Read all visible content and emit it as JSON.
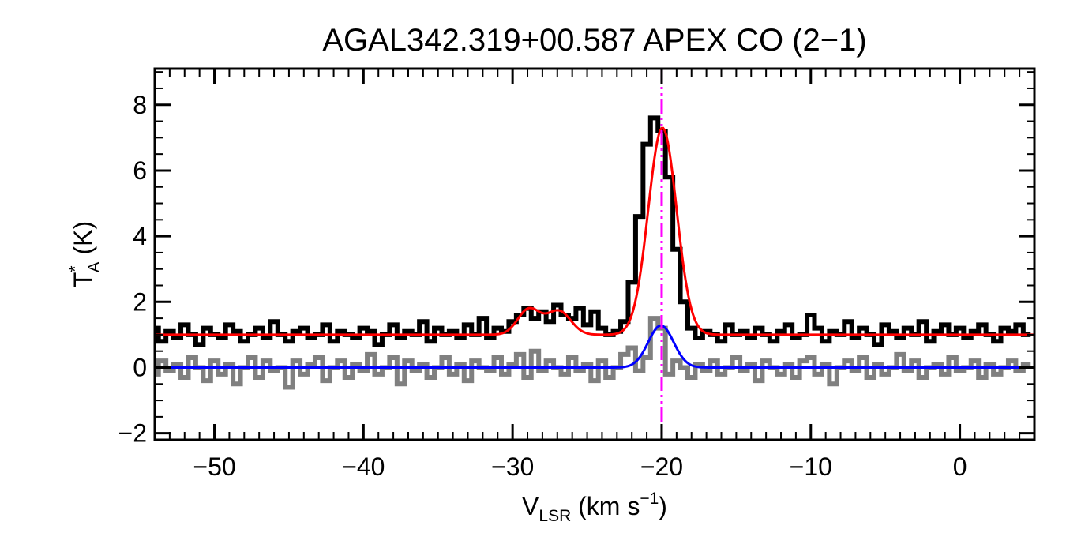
{
  "chart_data": {
    "type": "line",
    "title": "AGAL342.319+00.587  APEX CO (2−1)",
    "xlabel": {
      "main": "V",
      "sub": "LSR",
      "rest": " (km s",
      "sup": "−1",
      "end": ")"
    },
    "ylabel": {
      "main": "T",
      "sup": "*",
      "sub": "A",
      "rest": " (K)"
    },
    "xlim": [
      -54,
      5
    ],
    "ylim": [
      -2.2,
      9.1
    ],
    "x_ticks": [
      -50,
      -40,
      -30,
      -20,
      -10,
      0
    ],
    "x_tick_labels": [
      "−50",
      "−40",
      "−30",
      "−20",
      "−10",
      "0"
    ],
    "y_ticks": [
      -2,
      0,
      2,
      4,
      6,
      8
    ],
    "y_tick_labels": [
      "−2",
      "0",
      "2",
      "4",
      "6",
      "8"
    ],
    "grid": false,
    "marker_line": {
      "x": -20,
      "color": "#ff00ff",
      "style": "dash-dot-dot"
    },
    "series": [
      {
        "role": "observed-spectrum",
        "style": "step",
        "color": "#000000",
        "x": [
          -54,
          -53.5,
          -53,
          -52.5,
          -52,
          -51.5,
          -51,
          -50.5,
          -50,
          -49.5,
          -49,
          -48.5,
          -48,
          -47.5,
          -47,
          -46.5,
          -46,
          -45.5,
          -45,
          -44.5,
          -44,
          -43.5,
          -43,
          -42.5,
          -42,
          -41.5,
          -41,
          -40.5,
          -40,
          -39.5,
          -39,
          -38.5,
          -38,
          -37.5,
          -37,
          -36.5,
          -36,
          -35.5,
          -35,
          -34.5,
          -34,
          -33.5,
          -33,
          -32.5,
          -32,
          -31.5,
          -31,
          -30.5,
          -30,
          -29.5,
          -29,
          -28.5,
          -28,
          -27.5,
          -27,
          -26.5,
          -26,
          -25.5,
          -25,
          -24.5,
          -24,
          -23.5,
          -23,
          -22.5,
          -22,
          -21.5,
          -21,
          -20.5,
          -20,
          -19.5,
          -19,
          -18.5,
          -18,
          -17.5,
          -17,
          -16.5,
          -16,
          -15.5,
          -15,
          -14.5,
          -14,
          -13.5,
          -13,
          -12.5,
          -12,
          -11.5,
          -11,
          -10.5,
          -10,
          -9.5,
          -9,
          -8.5,
          -8,
          -7.5,
          -7,
          -6.5,
          -6,
          -5.5,
          -5,
          -4.5,
          -4,
          -3.5,
          -3,
          -2.5,
          -2,
          -1.5,
          -1,
          -0.5,
          0,
          0.5,
          1,
          1.5,
          2,
          2.5,
          3,
          3.5,
          4,
          4.5
        ],
        "y": [
          1.2,
          0.8,
          1.1,
          0.9,
          1.3,
          1.0,
          0.7,
          1.2,
          1.0,
          0.9,
          1.3,
          1.1,
          0.8,
          1.0,
          1.2,
          0.9,
          1.4,
          1.0,
          0.8,
          1.1,
          1.2,
          0.9,
          1.0,
          1.3,
          0.8,
          1.1,
          1.0,
          0.9,
          1.2,
          1.1,
          0.7,
          1.0,
          1.3,
          0.9,
          1.1,
          1.0,
          1.4,
          0.8,
          1.2,
          1.0,
          1.1,
          0.9,
          1.3,
          1.0,
          1.5,
          0.9,
          1.2,
          1.1,
          1.4,
          1.6,
          1.8,
          1.5,
          1.7,
          1.4,
          1.9,
          1.6,
          1.5,
          1.8,
          1.3,
          1.7,
          1.2,
          1.0,
          1.1,
          1.4,
          2.6,
          4.6,
          6.8,
          7.6,
          7.2,
          5.8,
          3.6,
          2.0,
          1.2,
          0.9,
          1.1,
          1.0,
          0.8,
          1.3,
          1.0,
          1.1,
          0.9,
          1.2,
          1.0,
          0.8,
          1.1,
          1.3,
          0.9,
          1.0,
          1.6,
          1.2,
          0.8,
          1.1,
          1.0,
          1.4,
          0.9,
          1.2,
          1.0,
          0.7,
          1.3,
          1.1,
          0.9,
          1.2,
          1.0,
          1.4,
          0.8,
          1.1,
          1.3,
          1.0,
          1.2,
          0.9,
          1.1,
          1.3,
          1.0,
          0.8,
          1.2,
          1.1,
          1.3,
          1.0
        ]
      },
      {
        "role": "residual-spectrum",
        "style": "step",
        "color": "#808080",
        "x": [
          -54,
          -53.5,
          -53,
          -52.5,
          -52,
          -51.5,
          -51,
          -50.5,
          -50,
          -49.5,
          -49,
          -48.5,
          -48,
          -47.5,
          -47,
          -46.5,
          -46,
          -45.5,
          -45,
          -44.5,
          -44,
          -43.5,
          -43,
          -42.5,
          -42,
          -41.5,
          -41,
          -40.5,
          -40,
          -39.5,
          -39,
          -38.5,
          -38,
          -37.5,
          -37,
          -36.5,
          -36,
          -35.5,
          -35,
          -34.5,
          -34,
          -33.5,
          -33,
          -32.5,
          -32,
          -31.5,
          -31,
          -30.5,
          -30,
          -29.5,
          -29,
          -28.5,
          -28,
          -27.5,
          -27,
          -26.5,
          -26,
          -25.5,
          -25,
          -24.5,
          -24,
          -23.5,
          -23,
          -22.5,
          -22,
          -21.5,
          -21,
          -20.5,
          -20,
          -19.5,
          -19,
          -18.5,
          -18,
          -17.5,
          -17,
          -16.5,
          -16,
          -15.5,
          -15,
          -14.5,
          -14,
          -13.5,
          -13,
          -12.5,
          -12,
          -11.5,
          -11,
          -10.5,
          -10,
          -9.5,
          -9,
          -8.5,
          -8,
          -7.5,
          -7,
          -6.5,
          -6,
          -5.5,
          -5,
          -4.5,
          -4,
          -3.5,
          -3,
          -2.5,
          -2,
          -1.5,
          -1,
          -0.5,
          0,
          0.5,
          1,
          1.5,
          2,
          2.5,
          3,
          3.5,
          4,
          4.5
        ],
        "y": [
          -0.2,
          0.2,
          -0.1,
          0.1,
          -0.3,
          0.3,
          0.0,
          -0.4,
          0.2,
          -0.2,
          0.1,
          -0.5,
          0.0,
          0.3,
          -0.3,
          0.2,
          -0.1,
          0.0,
          -0.6,
          0.2,
          -0.2,
          0.1,
          0.3,
          -0.4,
          0.0,
          0.2,
          -0.3,
          0.1,
          -0.1,
          0.4,
          -0.2,
          0.0,
          0.3,
          -0.5,
          0.2,
          -0.1,
          0.1,
          -0.3,
          0.0,
          0.3,
          -0.2,
          0.1,
          -0.4,
          0.2,
          0.0,
          -0.1,
          0.3,
          -0.2,
          0.1,
          0.4,
          -0.3,
          0.5,
          -0.1,
          0.2,
          0.0,
          -0.2,
          0.3,
          -0.1,
          0.1,
          -0.4,
          0.2,
          -0.3,
          0.0,
          0.4,
          0.6,
          -0.1,
          0.3,
          1.5,
          1.2,
          -0.2,
          0.2,
          0.0,
          -0.3,
          0.1,
          -0.1,
          0.2,
          -0.2,
          0.0,
          0.3,
          -0.1,
          0.1,
          -0.4,
          0.2,
          0.0,
          -0.2,
          0.1,
          -0.3,
          0.2,
          0.3,
          -0.2,
          0.1,
          -0.5,
          0.0,
          0.2,
          -0.1,
          0.3,
          -0.3,
          0.1,
          -0.2,
          0.0,
          0.4,
          -0.1,
          0.2,
          -0.3,
          0.0,
          0.1,
          -0.2,
          0.3,
          -0.1,
          0.0,
          0.2,
          -0.3,
          0.1,
          -0.2,
          0.0,
          0.2,
          -0.1,
          0.1
        ]
      },
      {
        "role": "fit-total",
        "style": "smooth",
        "color": "#ff0000",
        "baseline": 1.0,
        "gaussians": [
          {
            "amp": 6.3,
            "center": -19.95,
            "sigma": 0.95
          },
          {
            "amp": 0.78,
            "center": -28.9,
            "sigma": 0.75
          },
          {
            "amp": 0.72,
            "center": -26.9,
            "sigma": 0.8
          }
        ]
      },
      {
        "role": "fit-component",
        "style": "smooth",
        "color": "#0000ff",
        "baseline": 0.0,
        "gaussians": [
          {
            "amp": 1.28,
            "center": -20.05,
            "sigma": 0.85
          }
        ]
      }
    ]
  }
}
